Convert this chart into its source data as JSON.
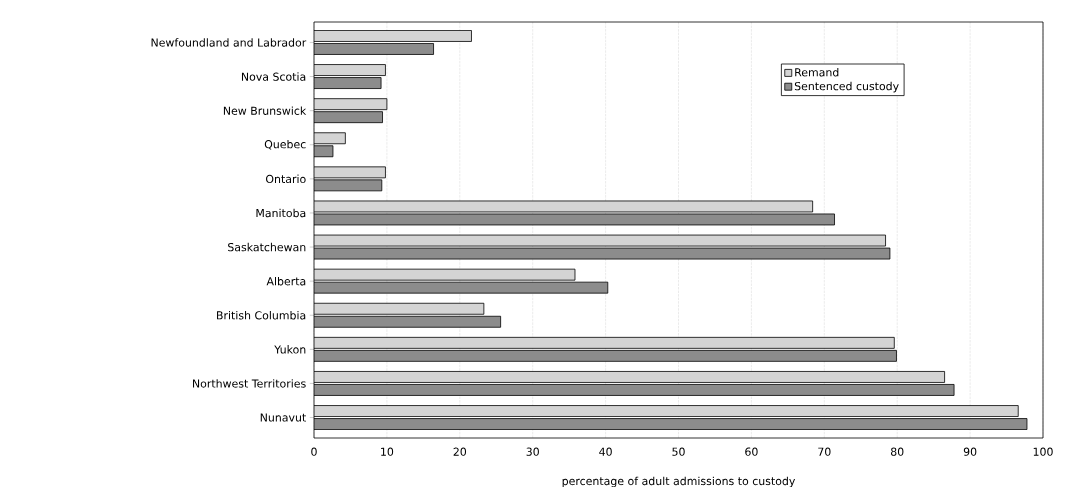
{
  "chart_data": {
    "type": "bar",
    "orientation": "horizontal",
    "xlabel": "percentage of adult admissions to custody",
    "categories": [
      "Newfoundland and Labrador",
      "Nova Scotia",
      "New Brunswick",
      "Quebec",
      "Ontario",
      "Manitoba",
      "Saskatchewan",
      "Alberta",
      "British Columbia",
      "Yukon",
      "Northwest Territories",
      "Nunavut"
    ],
    "series": [
      {
        "name": "Remand",
        "color": "#d4d4d4",
        "values": [
          21.6,
          9.8,
          10.0,
          4.3,
          9.8,
          68.4,
          78.4,
          35.8,
          23.3,
          79.6,
          86.5,
          96.6
        ]
      },
      {
        "name": "Sentenced custody",
        "color": "#8c8c8c",
        "values": [
          16.4,
          9.2,
          9.4,
          2.6,
          9.3,
          71.4,
          79.0,
          40.3,
          25.6,
          79.9,
          87.8,
          97.8
        ]
      }
    ],
    "xlim": [
      0,
      100
    ],
    "xticks": [
      0,
      10,
      20,
      30,
      40,
      50,
      60,
      70,
      80,
      90,
      100
    ],
    "grid": "x",
    "legend": "top right"
  }
}
